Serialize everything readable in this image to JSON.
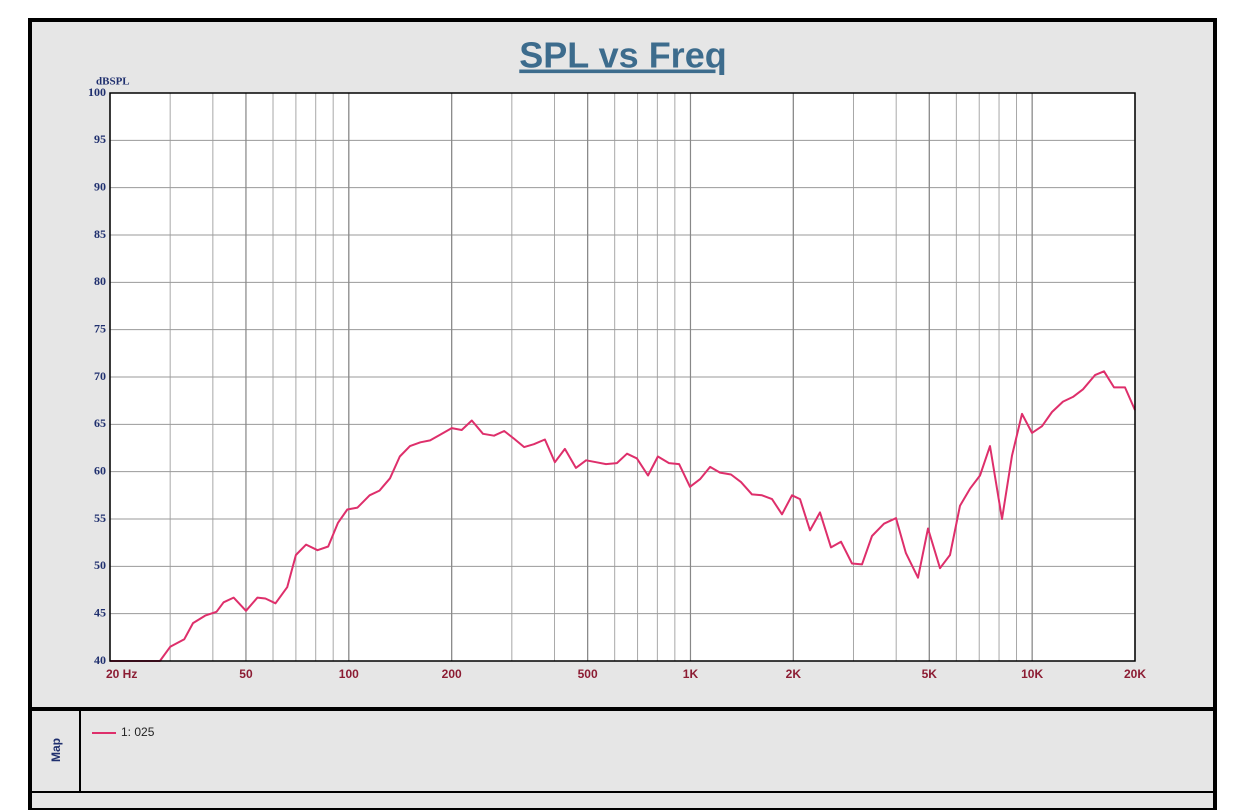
{
  "chart_data": {
    "type": "line",
    "title": "SPL vs Freq",
    "ylabel": "dBSPL",
    "legend_title": "Map",
    "x": [
      20,
      28,
      30,
      33,
      35,
      38,
      41,
      43,
      46,
      50,
      54,
      57,
      61,
      66,
      70,
      75,
      81,
      87,
      93,
      99,
      106,
      115,
      123,
      132,
      141,
      151,
      162,
      173,
      185,
      200,
      214,
      229,
      247,
      266,
      285,
      304,
      326,
      348,
      375,
      401,
      429,
      462,
      495,
      529,
      566,
      609,
      652,
      697,
      751,
      803,
      865,
      926,
      997,
      1066,
      1141,
      1220,
      1314,
      1406,
      1514,
      1619,
      1732,
      1853,
      1982,
      2092,
      2238,
      2394,
      2578,
      2758,
      2970,
      3177,
      3398,
      3684,
      3994,
      4272,
      4633,
      4956,
      5374,
      5748,
      6148,
      6577,
      7035,
      7526,
      8160,
      8730,
      9338,
      9989,
      10685,
      11428,
      12310,
      13166,
      14085,
      15270,
      16232,
      17362,
      18697,
      20000
    ],
    "series": [
      {
        "name": "1: 025",
        "color": "#de2f6b",
        "values": [
          40,
          40,
          41.5,
          42.3,
          44,
          44.8,
          45.2,
          46.2,
          46.7,
          45.3,
          46.7,
          46.6,
          46.1,
          47.8,
          51.2,
          52.3,
          51.7,
          52.1,
          54.6,
          56,
          56.2,
          57.5,
          58,
          59.3,
          61.6,
          62.7,
          63.1,
          63.3,
          63.9,
          64.6,
          64.4,
          65.4,
          64,
          63.8,
          64.3,
          63.5,
          62.6,
          62.9,
          63.4,
          61,
          62.4,
          60.4,
          61.2,
          61,
          60.8,
          60.9,
          61.9,
          61.4,
          59.6,
          61.6,
          60.9,
          60.8,
          58.4,
          59.2,
          60.5,
          59.9,
          59.7,
          58.9,
          57.6,
          57.5,
          57.1,
          55.5,
          57.5,
          57.1,
          53.8,
          55.7,
          52,
          52.6,
          50.3,
          50.2,
          53.2,
          54.5,
          55.1,
          51.4,
          48.8,
          54,
          49.8,
          51.2,
          56.4,
          58.2,
          59.6,
          62.7,
          55,
          61.7,
          66.1,
          64.1,
          64.8,
          66.3,
          67.4,
          67.9,
          68.7,
          70.2,
          70.6,
          68.9,
          68.9,
          66.5
        ]
      }
    ],
    "xscale": "log",
    "xlim": [
      20,
      20000
    ],
    "ylim": [
      40,
      100
    ],
    "xticks": [
      {
        "value": 20,
        "label": "20  Hz"
      },
      50,
      100,
      200,
      500,
      {
        "value": 1000,
        "label": "1K"
      },
      {
        "value": 2000,
        "label": "2K"
      },
      {
        "value": 5000,
        "label": "5K"
      },
      {
        "value": 10000,
        "label": "10K"
      },
      {
        "value": 20000,
        "label": "20K"
      }
    ],
    "yticks": [
      40,
      45,
      50,
      55,
      60,
      65,
      70,
      75,
      80,
      85,
      90,
      95,
      100
    ],
    "grid": true
  }
}
